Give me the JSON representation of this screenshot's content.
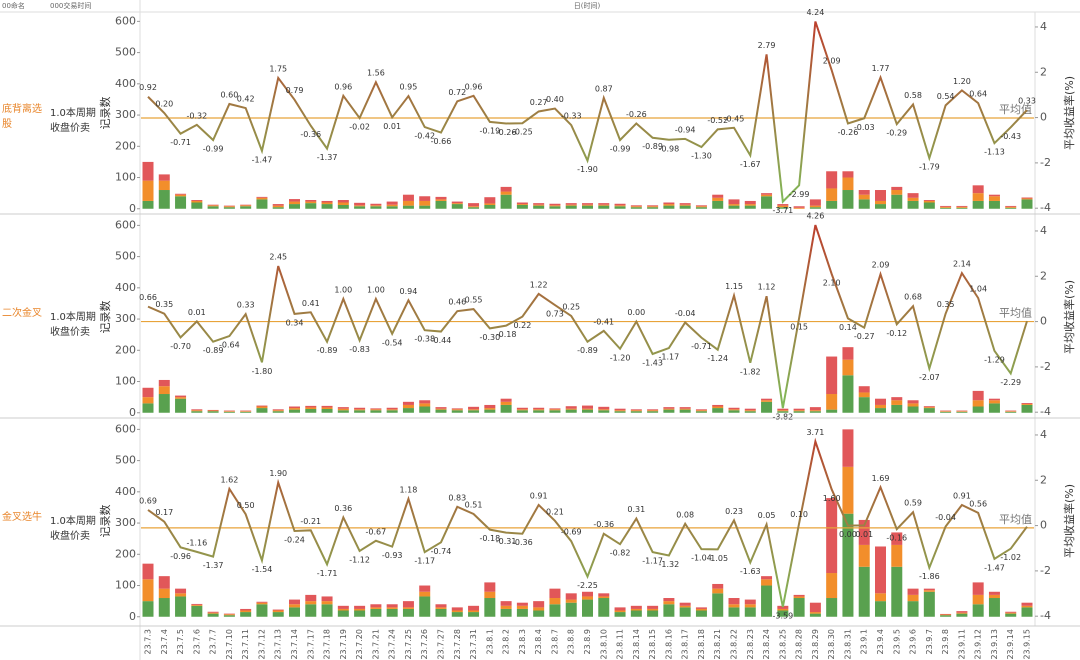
{
  "header": {
    "name_header": "00命名",
    "time_header": "000交易时间",
    "x_title": "日(时间)"
  },
  "x_axis": {
    "categories": [
      "23.7.3",
      "23.7.4",
      "23.7.5",
      "23.7.6",
      "23.7.7",
      "23.7.10",
      "23.7.11",
      "23.7.12",
      "23.7.13",
      "23.7.14",
      "23.7.17",
      "23.7.18",
      "23.7.19",
      "23.7.20",
      "23.7.21",
      "23.7.24",
      "23.7.25",
      "23.7.26",
      "23.7.27",
      "23.7.28",
      "23.7.31",
      "23.8.1",
      "23.8.2",
      "23.8.3",
      "23.8.4",
      "23.8.7",
      "23.8.8",
      "23.8.9",
      "23.8.10",
      "23.8.11",
      "23.8.14",
      "23.8.15",
      "23.8.16",
      "23.8.17",
      "23.8.18",
      "23.8.21",
      "23.8.22",
      "23.8.23",
      "23.8.24",
      "23.8.25",
      "23.8.28",
      "23.8.29",
      "23.8.30",
      "23.8.31",
      "23.9.1",
      "23.9.4",
      "23.9.5",
      "23.9.6",
      "23.9.7",
      "23.9.8",
      "23.9.11",
      "23.9.12",
      "23.9.13",
      "23.9.14",
      "23.9.15"
    ]
  },
  "chart_data": [
    {
      "type": "combo",
      "row_label": "底背离选股",
      "row_sublabel": [
        "1.0本周期",
        "收盘价卖"
      ],
      "y_title": "记录数",
      "y2_title": "平均收益率(%)",
      "ylim": [
        -20,
        630
      ],
      "yticks": [
        0,
        100,
        200,
        300,
        400,
        500,
        600
      ],
      "y2lim": [
        -4.3,
        4.66
      ],
      "y2ticks": [
        -4,
        -2,
        0,
        2,
        4
      ],
      "series": [
        {
          "color": "#59a14f",
          "values": [
            25,
            60,
            40,
            20,
            8,
            5,
            8,
            30,
            5,
            15,
            18,
            15,
            12,
            8,
            8,
            8,
            10,
            10,
            25,
            15,
            5,
            12,
            45,
            12,
            10,
            8,
            10,
            10,
            10,
            8,
            5,
            5,
            10,
            10,
            5,
            25,
            10,
            10,
            40,
            5,
            0,
            5,
            25,
            60,
            30,
            15,
            45,
            25,
            20,
            3,
            3,
            25,
            25,
            3,
            30
          ]
        },
        {
          "color": "#f28e2b",
          "values": [
            65,
            30,
            5,
            5,
            3,
            3,
            3,
            5,
            5,
            8,
            5,
            5,
            8,
            3,
            3,
            5,
            15,
            15,
            5,
            3,
            3,
            5,
            10,
            3,
            3,
            3,
            3,
            3,
            3,
            3,
            3,
            3,
            5,
            3,
            3,
            10,
            5,
            5,
            5,
            5,
            3,
            5,
            40,
            40,
            15,
            10,
            15,
            10,
            5,
            3,
            3,
            25,
            15,
            3,
            3
          ]
        },
        {
          "color": "#e15759",
          "values": [
            60,
            20,
            3,
            3,
            2,
            2,
            2,
            3,
            5,
            8,
            5,
            5,
            8,
            8,
            5,
            10,
            20,
            15,
            8,
            5,
            10,
            20,
            15,
            5,
            5,
            5,
            5,
            5,
            5,
            5,
            3,
            3,
            5,
            5,
            3,
            10,
            15,
            10,
            5,
            5,
            5,
            20,
            55,
            20,
            15,
            35,
            10,
            15,
            3,
            3,
            3,
            25,
            5,
            3,
            3
          ]
        },
        {
          "axis": "y2",
          "color": "#c0392b",
          "low_color": "#7cc35c",
          "values": [
            0.92,
            0.2,
            -0.71,
            -0.32,
            -0.99,
            0.6,
            0.42,
            -1.47,
            1.75,
            0.79,
            -0.36,
            -1.37,
            0.96,
            -0.02,
            1.56,
            0.01,
            0.95,
            -0.42,
            -0.66,
            0.72,
            0.96,
            -0.19,
            -0.26,
            -0.25,
            0.27,
            0.4,
            -0.33,
            -1.9,
            0.87,
            -0.99,
            -0.26,
            -0.89,
            -0.98,
            -0.94,
            -1.3,
            -0.52,
            -0.45,
            -1.67,
            2.79,
            -3.71,
            -2.99,
            4.24,
            2.09,
            -0.26,
            -0.03,
            1.77,
            -0.29,
            0.58,
            -1.79,
            0.54,
            1.2,
            0.64,
            -1.13,
            -0.43,
            0.33
          ],
          "value_labels": [
            "0.92",
            "0.20",
            "-0.71",
            "-0.32",
            "-0.99",
            "0.60",
            "0.42",
            "-1.47",
            "1.75",
            "0.79",
            "-0.36",
            "-1.37",
            "0.96",
            "-0.02",
            "1.56",
            "0.01",
            "0.95",
            "-0.42",
            "-0.66",
            "0.72",
            "0.96",
            "-0.19",
            "-0.26",
            "-0.25",
            "0.27",
            "0.40",
            "-0.33",
            "-1.90",
            "0.87",
            "-0.99",
            "-0.26",
            "-0.89",
            "-0.98",
            "-0.94",
            "-1.30",
            "-0.52",
            "-0.45",
            "-1.67",
            "2.79",
            "-3.71",
            "-2.99",
            "4.24",
            "2.09",
            "-0.26",
            "-0.03",
            "1.77",
            "-0.29",
            "0.58",
            "-1.79",
            "0.54",
            "1.20",
            "0.64",
            "-1.13",
            "-0.43",
            "0.33"
          ]
        }
      ],
      "average": {
        "value": -0.02,
        "label": "平均值",
        "color": "#e8a33a"
      }
    },
    {
      "type": "combo",
      "row_label": "二次金叉",
      "row_sublabel": [
        "1.0本周期",
        "收盘价卖"
      ],
      "y_title": "记录数",
      "y2_title": "平均收益率(%)",
      "ylim": [
        -20,
        630
      ],
      "yticks": [
        0,
        100,
        200,
        300,
        400,
        500,
        600
      ],
      "y2lim": [
        -4.3,
        4.66
      ],
      "y2ticks": [
        -4,
        -2,
        0,
        2,
        4
      ],
      "series": [
        {
          "color": "#59a14f",
          "values": [
            30,
            60,
            45,
            5,
            5,
            3,
            3,
            15,
            5,
            10,
            12,
            12,
            8,
            8,
            8,
            8,
            15,
            20,
            10,
            8,
            8,
            10,
            25,
            8,
            8,
            8,
            10,
            10,
            8,
            5,
            5,
            5,
            10,
            10,
            5,
            15,
            8,
            5,
            35,
            5,
            5,
            5,
            10,
            120,
            50,
            15,
            25,
            20,
            15,
            3,
            3,
            20,
            30,
            3,
            25
          ]
        },
        {
          "color": "#f28e2b",
          "values": [
            20,
            25,
            5,
            3,
            2,
            2,
            2,
            5,
            3,
            5,
            5,
            5,
            5,
            3,
            3,
            3,
            10,
            10,
            3,
            3,
            3,
            5,
            10,
            3,
            3,
            3,
            3,
            3,
            3,
            3,
            3,
            3,
            3,
            3,
            3,
            5,
            3,
            3,
            5,
            3,
            3,
            3,
            50,
            50,
            15,
            10,
            15,
            10,
            3,
            2,
            2,
            20,
            10,
            2,
            3
          ]
        },
        {
          "color": "#e15759",
          "values": [
            30,
            20,
            5,
            3,
            2,
            2,
            2,
            3,
            3,
            5,
            5,
            5,
            5,
            5,
            3,
            5,
            10,
            10,
            5,
            3,
            8,
            10,
            10,
            5,
            5,
            3,
            8,
            10,
            8,
            5,
            3,
            3,
            5,
            5,
            3,
            5,
            5,
            5,
            5,
            5,
            5,
            10,
            120,
            40,
            20,
            20,
            10,
            10,
            3,
            2,
            2,
            30,
            5,
            2,
            3
          ]
        },
        {
          "axis": "y2",
          "color": "#c0392b",
          "low_color": "#7cc35c",
          "values": [
            0.66,
            0.35,
            -0.7,
            0.01,
            -0.89,
            -0.64,
            0.33,
            -1.8,
            2.45,
            0.34,
            0.41,
            -0.89,
            1.0,
            -0.83,
            1.0,
            -0.54,
            0.94,
            -0.38,
            -0.44,
            0.46,
            0.55,
            -0.3,
            -0.18,
            0.22,
            1.22,
            0.73,
            0.25,
            -0.89,
            -0.41,
            -1.2,
            0.0,
            -1.43,
            -1.17,
            -0.04,
            -0.71,
            -1.24,
            1.15,
            -1.82,
            1.12,
            -3.82,
            0.15,
            4.26,
            2.1,
            0.14,
            -0.27,
            2.09,
            -0.12,
            0.68,
            -2.07,
            0.35,
            2.14,
            1.04,
            -1.29,
            -2.29,
            0.02
          ],
          "value_labels": [
            "0.66",
            "0.35",
            "-0.70",
            "0.01",
            "-0.89",
            "-0.64",
            "0.33",
            "-1.80",
            "2.45",
            "0.34",
            "0.41",
            "-0.89",
            "1.00",
            "-0.83",
            "1.00",
            "-0.54",
            "0.94",
            "-0.38",
            "-0.44",
            "0.46",
            "0.55",
            "-0.30",
            "-0.18",
            "0.22",
            "1.22",
            "0.73",
            "0.25",
            "-0.89",
            "-0.41",
            "-1.20",
            "0.00",
            "-1.43",
            "-1.17",
            "-0.04",
            "-0.71",
            "-1.24",
            "1.15",
            "-1.82",
            "1.12",
            "-3.82",
            "0.15",
            "4.26",
            "2.10",
            "0.14",
            "-0.27",
            "2.09",
            "-0.12",
            "0.68",
            "-2.07",
            "0.35",
            "2.14",
            "1.04",
            "-1.29",
            "-2.29",
            null
          ]
        }
      ],
      "average": {
        "value": 0.0,
        "label": "平均值",
        "color": "#e8a33a"
      }
    },
    {
      "type": "combo",
      "row_label": "金叉选牛",
      "row_sublabel": [
        "1.0本周期",
        "收盘价卖"
      ],
      "y_title": "记录数",
      "y2_title": "平均收益率(%)",
      "ylim": [
        -20,
        630
      ],
      "yticks": [
        0,
        100,
        200,
        300,
        400,
        500,
        600
      ],
      "y2lim": [
        -4.3,
        4.66
      ],
      "y2ticks": [
        -4,
        -2,
        0,
        2,
        4
      ],
      "series": [
        {
          "color": "#59a14f",
          "values": [
            50,
            60,
            65,
            35,
            10,
            5,
            15,
            40,
            15,
            30,
            40,
            40,
            20,
            20,
            25,
            25,
            25,
            65,
            25,
            15,
            15,
            60,
            25,
            25,
            20,
            40,
            45,
            55,
            60,
            15,
            20,
            20,
            40,
            30,
            20,
            75,
            30,
            30,
            100,
            20,
            60,
            10,
            60,
            330,
            160,
            50,
            160,
            50,
            80,
            5,
            10,
            40,
            60,
            10,
            30
          ]
        },
        {
          "color": "#f28e2b",
          "values": [
            70,
            30,
            10,
            3,
            3,
            3,
            5,
            5,
            5,
            10,
            10,
            10,
            5,
            5,
            5,
            5,
            5,
            15,
            5,
            5,
            5,
            20,
            10,
            10,
            10,
            20,
            10,
            10,
            5,
            5,
            5,
            5,
            10,
            5,
            5,
            15,
            10,
            10,
            20,
            5,
            5,
            5,
            80,
            150,
            70,
            25,
            70,
            20,
            5,
            2,
            3,
            30,
            10,
            3,
            5
          ]
        },
        {
          "color": "#e15759",
          "values": [
            50,
            40,
            15,
            3,
            3,
            2,
            5,
            3,
            3,
            15,
            20,
            15,
            10,
            10,
            10,
            10,
            20,
            20,
            10,
            10,
            15,
            30,
            15,
            10,
            20,
            30,
            20,
            15,
            10,
            10,
            10,
            10,
            10,
            10,
            5,
            15,
            20,
            15,
            10,
            10,
            5,
            30,
            240,
            120,
            80,
            150,
            40,
            20,
            5,
            2,
            5,
            40,
            10,
            3,
            10
          ]
        },
        {
          "axis": "y2",
          "color": "#c0392b",
          "low_color": "#7cc35c",
          "values": [
            0.69,
            0.17,
            -0.96,
            -1.16,
            -1.37,
            1.62,
            0.5,
            -1.54,
            1.9,
            -0.24,
            -0.21,
            -1.71,
            0.36,
            -1.12,
            -0.67,
            -0.93,
            1.18,
            -1.17,
            -0.74,
            0.83,
            0.51,
            -0.18,
            -0.31,
            -0.36,
            0.91,
            0.21,
            -0.69,
            -2.25,
            -0.36,
            -0.82,
            0.31,
            -1.17,
            -1.32,
            0.08,
            -1.04,
            -1.05,
            0.23,
            -1.63,
            0.05,
            -3.59,
            0.1,
            3.71,
            1.6,
            0.0,
            0.01,
            1.69,
            -0.16,
            0.59,
            -1.86,
            -0.04,
            0.91,
            0.56,
            -1.47,
            -1.02,
            -0.05
          ],
          "value_labels": [
            "0.69",
            "0.17",
            "-0.96",
            "-1.16",
            "-1.37",
            "1.62",
            "0.50",
            "-1.54",
            "1.90",
            "-0.24",
            "-0.21",
            "-1.71",
            "0.36",
            "-1.12",
            "-0.67",
            "-0.93",
            "1.18",
            "-1.17",
            "-0.74",
            "0.83",
            "0.51",
            "-0.18",
            "-0.31",
            "-0.36",
            "0.91",
            "0.21",
            "-0.69",
            "-2.25",
            "-0.36",
            "-0.82",
            "0.31",
            "-1.17",
            "-1.32",
            "0.08",
            "-1.04",
            "-1.05",
            "0.23",
            "-1.63",
            "0.05",
            "-3.59",
            "0.10",
            "3.71",
            "1.60",
            "0.00",
            "0.01",
            "1.69",
            "-0.16",
            "0.59",
            "-1.86",
            "-0.04",
            "0.91",
            "0.56",
            "-1.47",
            "-1.02",
            null
          ]
        }
      ],
      "average": {
        "value": -0.1,
        "label": "平均值",
        "color": "#e8a33a"
      }
    }
  ]
}
